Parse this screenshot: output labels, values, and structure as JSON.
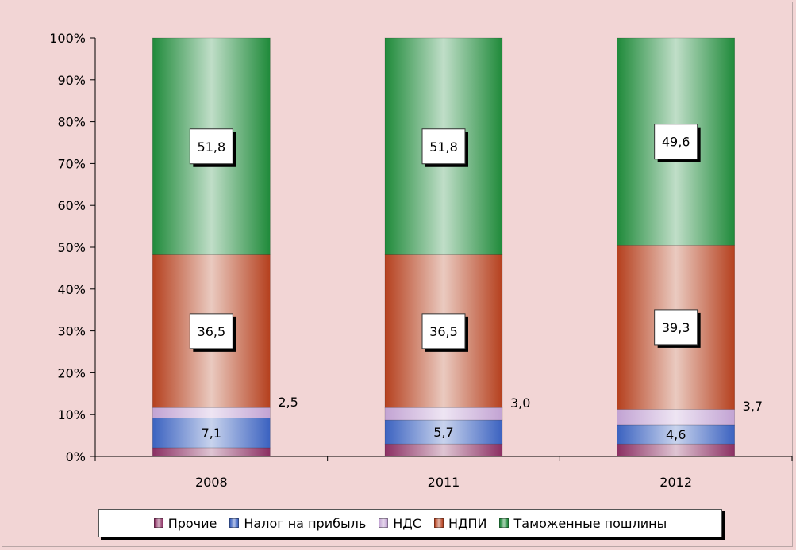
{
  "chart_data": {
    "type": "bar",
    "stacked": true,
    "normalized": true,
    "categories": [
      "2008",
      "2011",
      "2012"
    ],
    "y_ticks": [
      "0%",
      "10%",
      "20%",
      "30%",
      "40%",
      "50%",
      "60%",
      "70%",
      "80%",
      "90%",
      "100%"
    ],
    "ylim": [
      0,
      100
    ],
    "grid": false,
    "legend_position": "bottom",
    "series": [
      {
        "name": "Прочие",
        "values": [
          2.1,
          3.0,
          3.0
        ],
        "color": "#8b2f62"
      },
      {
        "name": "Налог на прибыль",
        "values": [
          7.1,
          5.7,
          4.6
        ],
        "color": "#3b62c0"
      },
      {
        "name": "НДС",
        "values": [
          2.5,
          3.0,
          3.7
        ],
        "color": "#c2a3d3"
      },
      {
        "name": "НДПИ",
        "values": [
          36.5,
          36.5,
          39.3
        ],
        "color": "#b5401e"
      },
      {
        "name": "Таможенные пошлины",
        "values": [
          51.8,
          51.8,
          49.6
        ],
        "color": "#1f8a3a"
      }
    ],
    "data_labels": [
      {
        "series": "Налог на прибыль",
        "category": "2008",
        "text": "7,1"
      },
      {
        "series": "НДС",
        "category": "2008",
        "text": "2,5"
      },
      {
        "series": "НДПИ",
        "category": "2008",
        "text": "36,5"
      },
      {
        "series": "Таможенные пошлины",
        "category": "2008",
        "text": "51,8"
      },
      {
        "series": "Налог на прибыль",
        "category": "2011",
        "text": "5,7"
      },
      {
        "series": "НДС",
        "category": "2011",
        "text": "3,0"
      },
      {
        "series": "НДПИ",
        "category": "2011",
        "text": "36,5"
      },
      {
        "series": "Таможенные пошлины",
        "category": "2011",
        "text": "51,8"
      },
      {
        "series": "Налог на прибыль",
        "category": "2012",
        "text": "4,6"
      },
      {
        "series": "НДС",
        "category": "2012",
        "text": "3,7"
      },
      {
        "series": "НДПИ",
        "category": "2012",
        "text": "39,3"
      },
      {
        "series": "Таможенные пошлины",
        "category": "2012",
        "text": "49,6"
      }
    ]
  }
}
